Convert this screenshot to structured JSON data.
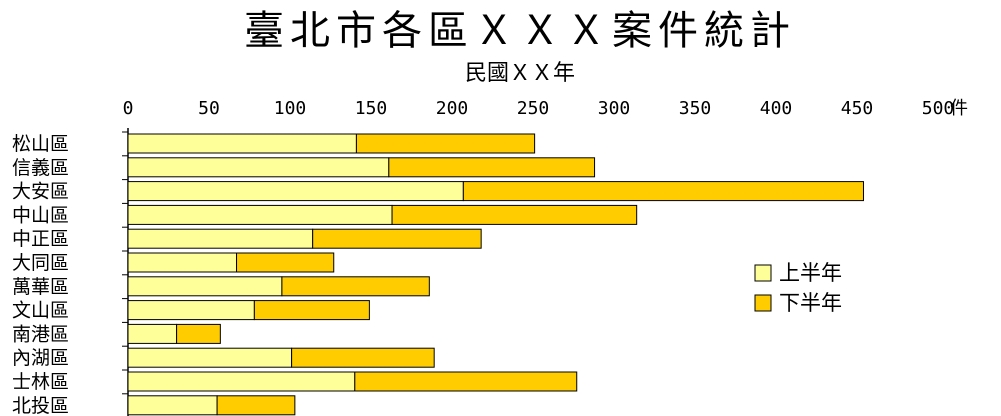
{
  "chart_data": {
    "type": "bar",
    "orientation": "horizontal",
    "stacked": true,
    "title": "臺北市各區ＸＸＸ案件統計",
    "subtitle": "民國ＸＸ年",
    "xunit": "件",
    "xlim": [
      0,
      500
    ],
    "xticks": [
      0,
      50,
      100,
      150,
      200,
      250,
      300,
      350,
      400,
      450,
      500
    ],
    "categories": [
      "松山區",
      "信義區",
      "大安區",
      "中山區",
      "中正區",
      "大同區",
      "萬華區",
      "文山區",
      "南港區",
      "內湖區",
      "士林區",
      "北投區"
    ],
    "series": [
      {
        "name": "上半年",
        "color": "#ffff99",
        "values": [
          141,
          161,
          207,
          163,
          114,
          67,
          95,
          78,
          30,
          101,
          140,
          55
        ]
      },
      {
        "name": "下半年",
        "color": "#ffcc00",
        "values": [
          110,
          127,
          247,
          151,
          104,
          60,
          91,
          71,
          27,
          88,
          137,
          48
        ]
      }
    ],
    "legend": "right",
    "grid": false
  }
}
